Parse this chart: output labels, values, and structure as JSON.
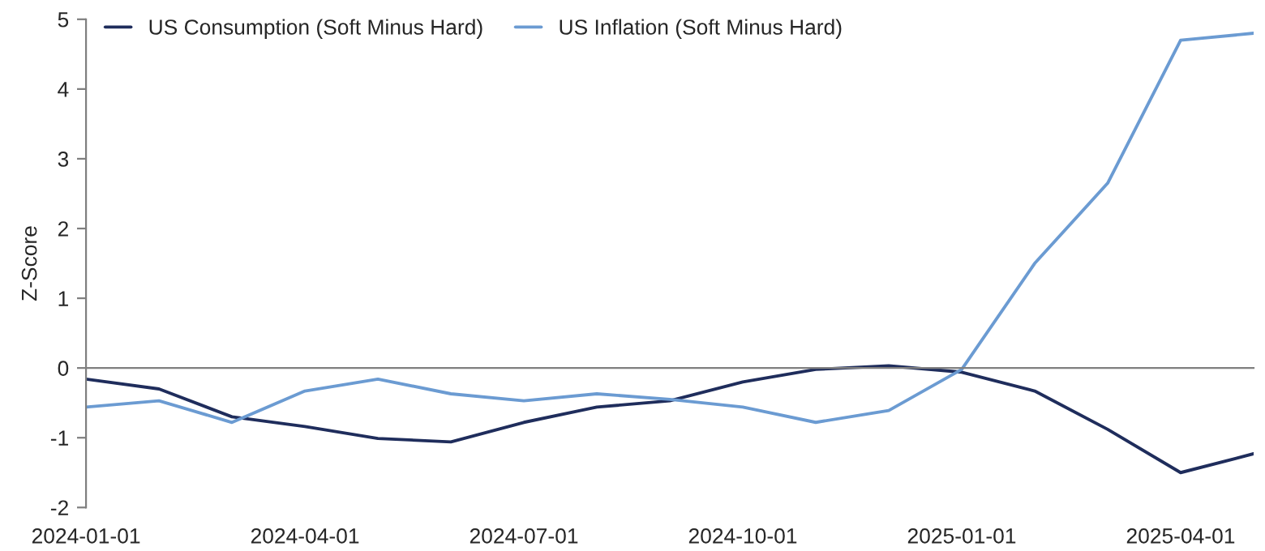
{
  "chart_data": {
    "type": "line",
    "ylabel": "Z-Score",
    "categories": [
      "2024-01-01",
      null,
      null,
      "2024-04-01",
      null,
      null,
      "2024-07-01",
      null,
      null,
      "2024-10-01",
      null,
      null,
      "2025-01-01",
      null,
      null,
      "2025-04-01",
      null
    ],
    "series": [
      {
        "name": "US Consumption (Soft Minus Hard)",
        "color": "#1f2d5c",
        "values": [
          -0.16,
          -0.3,
          -0.7,
          -0.84,
          -1.01,
          -1.06,
          -0.78,
          -0.56,
          -0.47,
          -0.2,
          -0.02,
          0.03,
          -0.06,
          -0.33,
          -0.88,
          -1.5,
          -1.23
        ]
      },
      {
        "name": "US Inflation (Soft Minus Hard)",
        "color": "#6b9bd2",
        "values": [
          -0.56,
          -0.47,
          -0.78,
          -0.33,
          -0.16,
          -0.37,
          -0.47,
          -0.37,
          -0.45,
          -0.56,
          -0.78,
          -0.61,
          -0.02,
          1.5,
          2.65,
          4.7,
          4.8
        ]
      }
    ],
    "ylim": [
      -2,
      5
    ],
    "yticks": [
      -2,
      -1,
      0,
      1,
      2,
      3,
      4,
      5
    ],
    "legend": "top left",
    "marker": "none",
    "line_style": "solid"
  }
}
